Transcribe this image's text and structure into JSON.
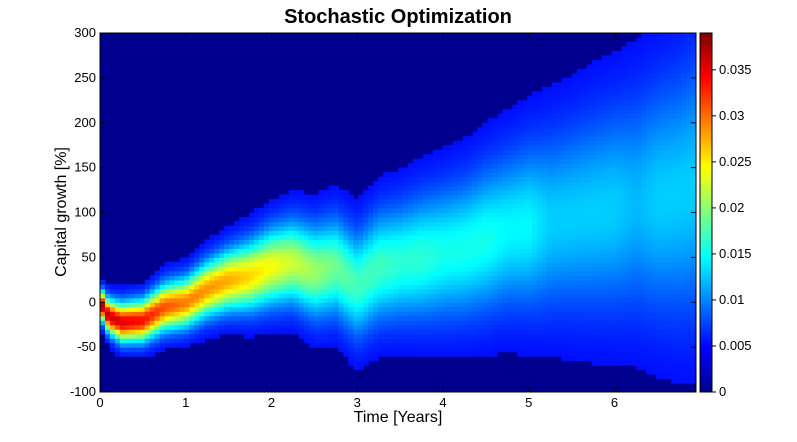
{
  "chart_data": {
    "type": "heatmap",
    "title": "Stochastic Optimization",
    "xlabel": "Time [Years]",
    "ylabel": "Capital growth [%]",
    "xlim": [
      0,
      6.95
    ],
    "ylim": [
      -100,
      300
    ],
    "x_ticks": [
      0,
      1,
      2,
      3,
      4,
      5,
      6
    ],
    "y_ticks": [
      -100,
      -50,
      0,
      50,
      100,
      150,
      200,
      250,
      300
    ],
    "colormap": "jet",
    "clim": [
      0,
      0.039
    ],
    "colorbar_ticks": [
      0,
      0.005,
      0.01,
      0.015,
      0.02,
      0.025,
      0.03,
      0.035
    ],
    "density_ridge": {
      "time": [
        0,
        0.1,
        0.25,
        0.5,
        0.75,
        1.0,
        1.25,
        1.5,
        1.75,
        2.0,
        2.25,
        2.5,
        2.75,
        3.0,
        3.25,
        3.5,
        3.75,
        4.0,
        4.25,
        4.5,
        4.75,
        5.0,
        5.25,
        5.5,
        5.75,
        6.0,
        6.25,
        6.5,
        6.75,
        6.95
      ],
      "median_growth": [
        0,
        -15,
        -22,
        -20,
        -5,
        0,
        15,
        25,
        30,
        40,
        45,
        35,
        40,
        20,
        40,
        45,
        50,
        55,
        60,
        70,
        80,
        85,
        90,
        95,
        100,
        105,
        110,
        115,
        120,
        130
      ],
      "peak_density": [
        0.038,
        0.036,
        0.035,
        0.033,
        0.03,
        0.028,
        0.027,
        0.026,
        0.024,
        0.022,
        0.02,
        0.018,
        0.016,
        0.014,
        0.014,
        0.013,
        0.013,
        0.012,
        0.012,
        0.012,
        0.011,
        0.011,
        0.009,
        0.009,
        0.009,
        0.009,
        0.008,
        0.009,
        0.009,
        0.009
      ],
      "spread": [
        10,
        12,
        14,
        15,
        17,
        18,
        20,
        22,
        25,
        28,
        30,
        33,
        35,
        38,
        40,
        42,
        45,
        48,
        50,
        53,
        56,
        60,
        65,
        68,
        72,
        75,
        80,
        85,
        90,
        95
      ]
    }
  }
}
